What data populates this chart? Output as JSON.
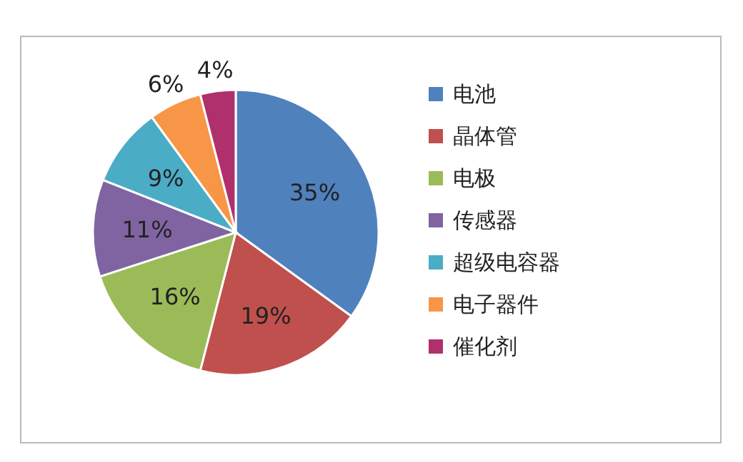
{
  "chart_data": {
    "type": "pie",
    "categories": [
      "电池",
      "晶体管",
      "电极",
      "传感器",
      "超级电容器",
      "电子器件",
      "催化剂"
    ],
    "values": [
      35,
      19,
      16,
      11,
      9,
      6,
      4
    ],
    "colors": [
      "#4f81bd",
      "#c0504d",
      "#9bbb59",
      "#8064a2",
      "#4bacc6",
      "#f79646",
      "#b0306e"
    ],
    "value_labels": [
      "35%",
      "19%",
      "16%",
      "11%",
      "9%",
      "6%",
      "4%"
    ],
    "legend": "right"
  }
}
